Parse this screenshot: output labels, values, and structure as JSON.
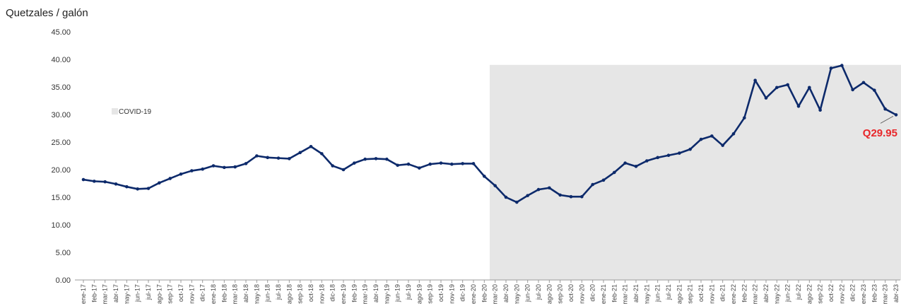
{
  "chart_data": {
    "type": "line",
    "title": "",
    "ylabel": "Quetzales / galón",
    "xlabel": "",
    "ylim": [
      0,
      45
    ],
    "yticks": [
      "0.00",
      "5.00",
      "10.00",
      "15.00",
      "20.00",
      "25.00",
      "30.00",
      "35.00",
      "40.00",
      "45.00"
    ],
    "grid": false,
    "legend": {
      "label": "COVID-19",
      "swatch_color": "#e6e6e6"
    },
    "shaded_region": {
      "label": "COVID-19",
      "from": "mar-20",
      "to": "abr-23",
      "color": "#e6e6e6"
    },
    "line_color": "#0d2a6b",
    "annotation": {
      "text": "Q29.95",
      "at": "abr-23",
      "color": "#e8262a"
    },
    "categories": [
      "ene-17",
      "feb-17",
      "mar-17",
      "abr-17",
      "may-17",
      "jun-17",
      "jul-17",
      "ago-17",
      "sep-17",
      "oct-17",
      "nov-17",
      "dic-17",
      "ene-18",
      "feb-18",
      "mar-18",
      "abr-18",
      "may-18",
      "jun-18",
      "jul-18",
      "ago-18",
      "sep-18",
      "oct-18",
      "nov-18",
      "dic-18",
      "ene-19",
      "feb-19",
      "mar-19",
      "abr-19",
      "may-19",
      "jun-19",
      "jul-19",
      "ago-19",
      "sep-19",
      "oct-19",
      "nov-19",
      "dic-19",
      "ene-20",
      "feb-20",
      "mar-20",
      "abr-20",
      "may-20",
      "jun-20",
      "jul-20",
      "ago-20",
      "sep-20",
      "oct-20",
      "nov-20",
      "dic-20",
      "ene-21",
      "feb-21",
      "mar-21",
      "abr-21",
      "may-21",
      "jun-21",
      "jul-21",
      "ago-21",
      "sep-21",
      "oct-21",
      "nov-21",
      "dic-21",
      "ene-22",
      "feb-22",
      "mar-22",
      "abr-22",
      "may-22",
      "jun-22",
      "jul-22",
      "ago-22",
      "sep-22",
      "oct-22",
      "nov-22",
      "dic-22",
      "ene-23",
      "feb-23",
      "mar-23",
      "abr-23"
    ],
    "tick_labels": [
      "ene-17",
      "feb-17",
      "mar-17",
      "abr-17",
      "may-17",
      "jun-17",
      "jul-17",
      "ago-17",
      "sep-17",
      "oct-17",
      "nov-17",
      "dic-17",
      "ene-18",
      "feb-18",
      "mar-18",
      "abr-18",
      "may-18",
      "jun-18",
      "jul-18",
      "ago-18",
      "sep-18",
      "oct-18",
      "nov-18",
      "dic-18",
      "ene-19",
      "feb-19",
      "mar-19",
      "abr-19",
      "may-19",
      "jun-19",
      "jul-19",
      "ago-19",
      "sep-19",
      "oct-19",
      "nov-19",
      "dic-19",
      "ene-20",
      "feb-20",
      "mar-20",
      "abr-20",
      "may-20",
      "jun-20",
      "jul-20",
      "ago-20",
      "sep-20",
      "oct-20",
      "nov-20",
      "dic-20",
      "ene-21",
      "feb-21",
      "mar-21",
      "abr-21",
      "may-21",
      "jun-21",
      "jul-21",
      "ago-21",
      "sep-21",
      "oct-21",
      "nov-21",
      "dic-21",
      "ene-22",
      "feb-22",
      "mar-22",
      "abr-22",
      "may-22",
      "jun-22",
      "jul-22",
      "ago-22",
      "sep-22",
      "oct-22",
      "nov-22",
      "dic-22",
      "ene-23",
      "feb-23",
      "mar-23",
      "abr-23"
    ],
    "values": [
      18.2,
      17.9,
      17.8,
      17.4,
      16.9,
      16.5,
      16.6,
      17.6,
      18.4,
      19.2,
      19.8,
      20.1,
      20.7,
      20.4,
      20.5,
      21.1,
      22.5,
      22.2,
      22.1,
      22.0,
      23.1,
      24.2,
      22.9,
      20.7,
      20.0,
      21.2,
      21.9,
      22.0,
      21.9,
      20.8,
      21.0,
      20.3,
      21.0,
      21.2,
      21.0,
      21.1,
      21.1,
      18.8,
      17.1,
      15.0,
      14.1,
      15.3,
      16.4,
      16.7,
      15.4,
      15.1,
      15.1,
      17.3,
      18.1,
      19.5,
      21.2,
      20.6,
      21.6,
      22.2,
      22.6,
      23.0,
      23.7,
      25.5,
      26.1,
      24.4,
      26.5,
      29.4,
      36.2,
      33.0,
      34.9,
      35.4,
      31.5,
      34.9,
      30.8,
      38.4,
      38.9,
      34.5,
      35.8,
      34.4,
      31.0,
      29.95
    ]
  }
}
